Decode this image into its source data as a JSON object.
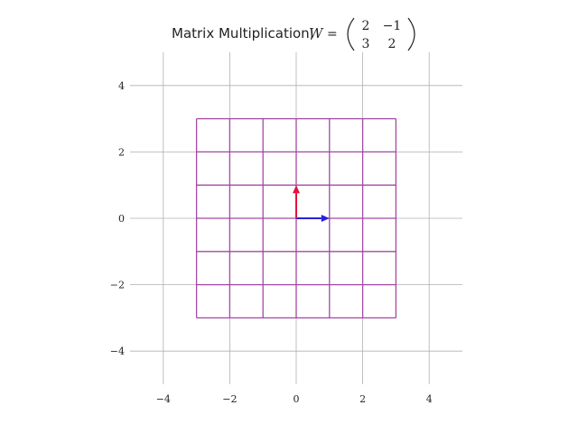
{
  "chart_data": {
    "type": "line",
    "title": {
      "text": "Matrix Multiplication,",
      "symbol": "W",
      "equals": "=",
      "matrix": [
        [
          "2",
          "−1"
        ],
        [
          "3",
          "2"
        ]
      ]
    },
    "xlabel": "",
    "ylabel": "",
    "xlim": [
      -5,
      5
    ],
    "ylim": [
      -5,
      5
    ],
    "xticks": [
      -4,
      -2,
      0,
      2,
      4
    ],
    "yticks": [
      -4,
      -2,
      0,
      2,
      4
    ],
    "xtick_labels": [
      "−4",
      "−2",
      "0",
      "2",
      "4"
    ],
    "ytick_labels": [
      "−4",
      "−2",
      "0",
      "2",
      "4"
    ],
    "grid": true,
    "mesh": {
      "range": [
        -3,
        3
      ],
      "lines": [
        -3,
        -2,
        -1,
        0,
        1,
        2,
        3
      ],
      "color": "#a349a4"
    },
    "vectors": [
      {
        "from": [
          0,
          0
        ],
        "to": [
          1,
          0
        ],
        "color": "#2a1fd9"
      },
      {
        "from": [
          0,
          0
        ],
        "to": [
          0,
          1
        ],
        "color": "#e3123c"
      }
    ],
    "colors": {
      "grid": "#b0b0b0",
      "spine": "#b0b0b0"
    }
  }
}
